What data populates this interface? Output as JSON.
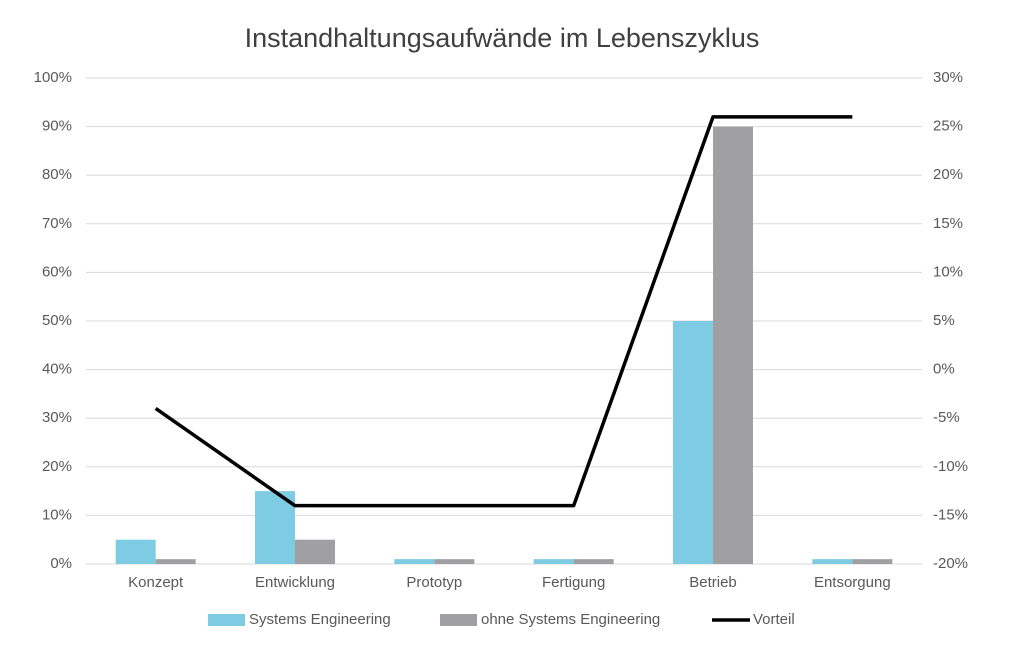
{
  "chart_data": {
    "type": "bar",
    "title": "Instandhaltungsaufwände im Lebenszyklus",
    "categories": [
      "Konzept",
      "Entwicklung",
      "Prototyp",
      "Fertigung",
      "Betrieb",
      "Entsorgung"
    ],
    "series": [
      {
        "name": "Systems Engineering",
        "color": "#7ecce4",
        "values": [
          5,
          15,
          1,
          1,
          50,
          1
        ]
      },
      {
        "name": "ohne Systems Engineering",
        "color": "#a0a0a3",
        "values": [
          1,
          5,
          1,
          1,
          90,
          1
        ]
      },
      {
        "name": "Vorteil",
        "color": "#000000",
        "type": "line",
        "axis": "y2",
        "values": [
          -4,
          -14,
          -14,
          -14,
          26,
          26
        ]
      }
    ],
    "ylim": [
      0,
      100
    ],
    "yticks": [
      {
        "value": 0,
        "label": "0%"
      },
      {
        "value": 10,
        "label": "10%"
      },
      {
        "value": 20,
        "label": "20%"
      },
      {
        "value": 30,
        "label": "30%"
      },
      {
        "value": 40,
        "label": "40%"
      },
      {
        "value": 50,
        "label": "50%"
      },
      {
        "value": 60,
        "label": "60%"
      },
      {
        "value": 70,
        "label": "70%"
      },
      {
        "value": 80,
        "label": "80%"
      },
      {
        "value": 90,
        "label": "90%"
      },
      {
        "value": 100,
        "label": "100%"
      }
    ],
    "y2lim": [
      -20,
      30
    ],
    "y2ticks": [
      {
        "value": -20,
        "label": "-20%"
      },
      {
        "value": -15,
        "label": "-15%"
      },
      {
        "value": -10,
        "label": "-10%"
      },
      {
        "value": -5,
        "label": "-5%"
      },
      {
        "value": 0,
        "label": "0%"
      },
      {
        "value": 5,
        "label": "5%"
      },
      {
        "value": 10,
        "label": "10%"
      },
      {
        "value": 15,
        "label": "15%"
      },
      {
        "value": 20,
        "label": "20%"
      },
      {
        "value": 25,
        "label": "25%"
      },
      {
        "value": 30,
        "label": "30%"
      }
    ],
    "grid": true,
    "legend": "bottom"
  }
}
